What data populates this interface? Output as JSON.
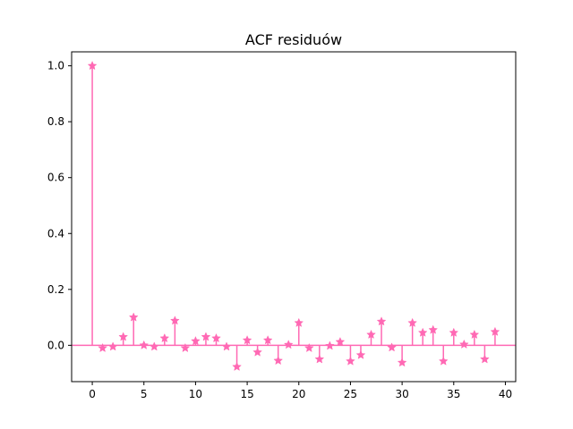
{
  "chart_data": {
    "type": "stem",
    "title": "ACF residuów",
    "xlabel": "",
    "ylabel": "",
    "xlim": [
      -2,
      41
    ],
    "ylim": [
      -0.13,
      1.05
    ],
    "xticks": [
      "0",
      "5",
      "10",
      "15",
      "20",
      "25",
      "30",
      "35",
      "40"
    ],
    "yticks": [
      "0.0",
      "0.2",
      "0.4",
      "0.6",
      "0.8",
      "1.0"
    ],
    "grid": false,
    "color": "#ff69b4",
    "marker": "star",
    "baseline": 0,
    "x": [
      0,
      1,
      2,
      3,
      4,
      5,
      6,
      7,
      8,
      9,
      10,
      11,
      12,
      13,
      14,
      15,
      16,
      17,
      18,
      19,
      20,
      21,
      22,
      23,
      24,
      25,
      26,
      27,
      28,
      29,
      30,
      31,
      32,
      33,
      34,
      35,
      36,
      37,
      38,
      39
    ],
    "values": [
      1.0,
      -0.01,
      -0.005,
      0.03,
      0.1,
      0.0,
      -0.005,
      0.025,
      0.088,
      -0.01,
      0.015,
      0.03,
      0.025,
      -0.005,
      -0.077,
      0.018,
      -0.025,
      0.018,
      -0.055,
      0.002,
      0.08,
      -0.01,
      -0.05,
      -0.002,
      0.012,
      -0.057,
      -0.035,
      0.038,
      0.085,
      -0.008,
      -0.062,
      0.08,
      0.045,
      0.055,
      -0.057,
      0.045,
      0.003,
      0.038,
      -0.05,
      0.048
    ]
  }
}
